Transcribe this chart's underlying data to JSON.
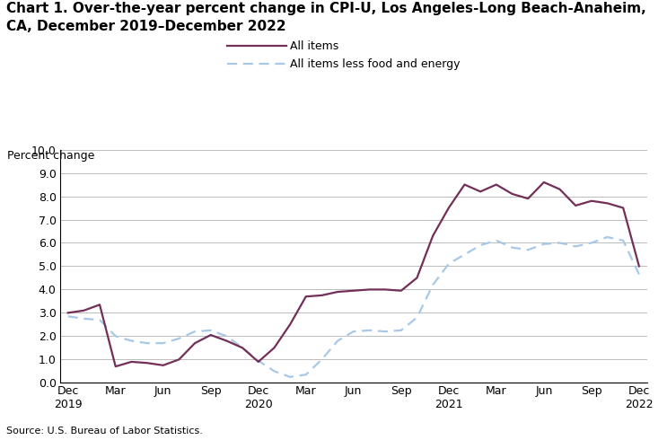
{
  "title_line1": "Chart 1. Over-the-year percent change in CPI-U, Los Angeles-Long Beach-Anaheim,",
  "title_line2": "CA, December 2019–December 2022",
  "ylabel": "Percent change",
  "source": "Source: U.S. Bureau of Labor Statistics.",
  "ylim": [
    0.0,
    10.0
  ],
  "yticks": [
    0.0,
    1.0,
    2.0,
    3.0,
    4.0,
    5.0,
    6.0,
    7.0,
    8.0,
    9.0,
    10.0
  ],
  "all_items_label": "All items",
  "core_label": "All items less food and energy",
  "all_items_color": "#722f57",
  "core_color": "#a8c8e8",
  "background_color": "#ffffff",
  "grid_color": "#bbbbbb",
  "title_fontsize": 11,
  "axis_label_fontsize": 9,
  "tick_fontsize": 9,
  "all_items_y": [
    3.0,
    3.1,
    3.35,
    0.7,
    0.9,
    0.85,
    0.75,
    1.0,
    1.7,
    2.05,
    1.8,
    1.5,
    0.9,
    1.5,
    2.5,
    3.7,
    3.75,
    3.9,
    3.95,
    4.0,
    4.0,
    3.95,
    4.5,
    6.3,
    7.5,
    8.5,
    8.2,
    8.5,
    8.1,
    7.9,
    8.6,
    8.3,
    7.6,
    7.8,
    7.7,
    7.5,
    5.0
  ],
  "core_y": [
    2.85,
    2.75,
    2.7,
    2.0,
    1.8,
    1.7,
    1.7,
    1.9,
    2.2,
    2.25,
    2.0,
    1.5,
    0.95,
    0.5,
    0.25,
    0.35,
    1.0,
    1.8,
    2.2,
    2.25,
    2.2,
    2.25,
    2.8,
    4.2,
    5.1,
    5.5,
    5.9,
    6.1,
    5.8,
    5.7,
    5.95,
    6.0,
    5.85,
    6.0,
    6.25,
    6.1,
    4.65
  ],
  "xtick_positions": [
    0,
    3,
    6,
    9,
    12,
    15,
    18,
    21,
    24,
    27,
    30,
    33,
    36
  ],
  "xtick_labels": [
    "Dec\n2019",
    "Mar",
    "Jun",
    "Sep",
    "Dec\n2020",
    "Mar",
    "Jun",
    "Sep",
    "Dec\n2021",
    "Mar",
    "Jun",
    "Sep",
    "Dec\n2022"
  ]
}
